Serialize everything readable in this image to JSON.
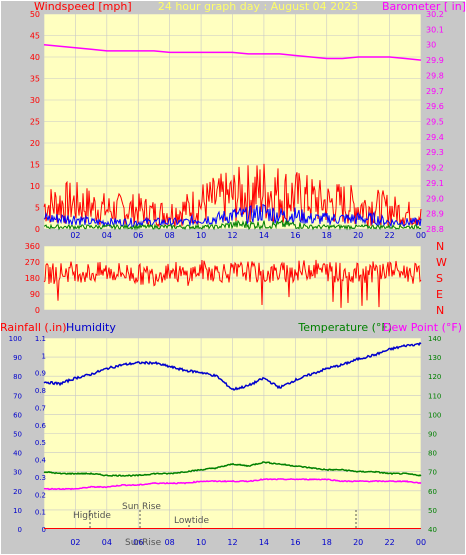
{
  "header": {
    "left_label": "Windspeed [mph]",
    "center_label": "24 hour graph day : August 04 2023",
    "right_label": "Barometer [ in]"
  },
  "colors": {
    "background": "#c8c8c8",
    "plot_bg": "#ffffc0",
    "grid": "#c8c8c8",
    "wind": "#ff0000",
    "gust_overlay": "#0000ff",
    "calm": "#008000",
    "barometer": "#ff00ff",
    "humidity": "#0000cc",
    "temperature": "#008000",
    "dew_point": "#ff00ff",
    "rain": "#ff0000",
    "title": "#ffff66",
    "marker": "#555555"
  },
  "wind_chart": {
    "y_left_ticks": [
      "0",
      "5",
      "10",
      "15",
      "20",
      "25",
      "30",
      "35",
      "40",
      "45",
      "50"
    ],
    "y_right_ticks": [
      "28.8",
      "28.9",
      "29.0",
      "29.1",
      "29.2",
      "29.3",
      "29.4",
      "29.5",
      "29.6",
      "29.7",
      "29.8",
      "29.9",
      "30",
      "30.1",
      "30.2"
    ]
  },
  "direction_chart": {
    "y_left_ticks": [
      "0",
      "90",
      "180",
      "270",
      "360"
    ],
    "compass": [
      "N",
      "W",
      "S",
      "E",
      "N"
    ]
  },
  "lower_chart": {
    "left_label_rain": "Rainfall (.in)",
    "left_label_humidity": "Humidity",
    "right_label_temp": "Temperature (°F)",
    "right_label_dew": "Dew Point (°F)",
    "y_humidity_ticks": [
      "0",
      "10",
      "20",
      "30",
      "40",
      "50",
      "60",
      "70",
      "80",
      "90",
      "100"
    ],
    "y_rain_ticks": [
      "0",
      "0.1",
      "0.2",
      "0.3",
      "0.4",
      "0.5",
      "0.6",
      "0.7",
      "0.8",
      "0.9",
      "1",
      "1.1"
    ],
    "y_temp_ticks": [
      "40",
      "50",
      "60",
      "70",
      "80",
      "90",
      "100",
      "110",
      "120",
      "130",
      "140"
    ],
    "markers": {
      "hightide": "Hightide",
      "sunrise": "Sun Rise",
      "lowtide": "Lowtide",
      "sunrise_axis": "SunRise"
    }
  },
  "x_ticks": [
    "02",
    "04",
    "06",
    "08",
    "10",
    "12",
    "14",
    "16",
    "18",
    "20",
    "22",
    "00"
  ],
  "chart_data": [
    {
      "type": "line",
      "ylabel": "Windspeed [mph]",
      "ylim": [
        0,
        50
      ],
      "x": [
        0,
        1,
        2,
        3,
        4,
        5,
        6,
        7,
        8,
        9,
        10,
        11,
        12,
        13,
        14,
        15,
        16,
        17,
        18,
        19,
        20,
        21,
        22,
        23,
        24
      ],
      "series": [
        {
          "name": "Windspeed [mph]",
          "values": [
            7,
            8,
            8,
            7,
            6,
            6,
            6,
            5,
            5,
            6,
            8,
            9,
            10,
            11,
            12,
            11,
            10,
            9,
            8,
            8,
            7,
            7,
            6,
            5,
            4
          ]
        }
      ],
      "gust_series": [
        3,
        3,
        3,
        2,
        2,
        2,
        2,
        2,
        2,
        2,
        3,
        3,
        4,
        4,
        5,
        4,
        4,
        3,
        3,
        3,
        3,
        3,
        2,
        2,
        2
      ],
      "calm_series": [
        1,
        1,
        1,
        1,
        1,
        1,
        1,
        1,
        1,
        1,
        1,
        1,
        2,
        2,
        2,
        2,
        2,
        1,
        1,
        1,
        1,
        1,
        1,
        1,
        1
      ],
      "barometer_ylim": [
        28.8,
        30.2
      ],
      "barometer": {
        "name": "Barometer [ in]",
        "values": [
          30.0,
          29.99,
          29.98,
          29.97,
          29.96,
          29.96,
          29.96,
          29.96,
          29.95,
          29.95,
          29.95,
          29.95,
          29.95,
          29.94,
          29.94,
          29.94,
          29.93,
          29.92,
          29.91,
          29.91,
          29.92,
          29.92,
          29.92,
          29.91,
          29.9
        ]
      }
    },
    {
      "type": "line",
      "ylim": [
        0,
        360
      ],
      "x": [
        0,
        1,
        2,
        3,
        4,
        5,
        6,
        7,
        8,
        9,
        10,
        11,
        12,
        13,
        14,
        15,
        16,
        17,
        18,
        19,
        20,
        21,
        22,
        23,
        24
      ],
      "series": [
        {
          "values": [
            200,
            210,
            220,
            205,
            215,
            210,
            200,
            195,
            230,
            190,
            225,
            215,
            210,
            220,
            200,
            210,
            215,
            230,
            220,
            210,
            205,
            215,
            225,
            210,
            200
          ]
        }
      ]
    },
    {
      "type": "line",
      "ylim": [
        0,
        100
      ],
      "x": [
        0,
        1,
        2,
        3,
        4,
        5,
        6,
        7,
        8,
        9,
        10,
        11,
        12,
        13,
        14,
        15,
        16,
        17,
        18,
        19,
        20,
        21,
        22,
        23,
        24
      ],
      "series": [
        {
          "name": "Humidity",
          "values": [
            77,
            76,
            79,
            81,
            84,
            86,
            87,
            87,
            85,
            83,
            82,
            80,
            73,
            75,
            79,
            74,
            78,
            81,
            84,
            86,
            89,
            91,
            94,
            96,
            97
          ]
        }
      ],
      "temp_ylim": [
        40,
        140
      ],
      "temperature": {
        "name": "Temperature (°F)",
        "values": [
          70,
          69,
          69,
          69,
          68,
          68,
          68,
          69,
          69,
          70,
          71,
          72,
          74,
          73,
          75,
          74,
          73,
          72,
          71,
          71,
          70,
          70,
          69,
          69,
          68
        ]
      },
      "dew_point": {
        "name": "Dew Point (°F)",
        "values": [
          61,
          61,
          61,
          62,
          62,
          63,
          63,
          64,
          64,
          64,
          65,
          65,
          65,
          65,
          66,
          66,
          66,
          66,
          66,
          65,
          65,
          65,
          65,
          65,
          64
        ]
      },
      "rain_ylim": [
        0,
        1.1
      ],
      "rainfall": {
        "name": "Rainfall (.in)",
        "values": [
          0,
          0,
          0,
          0,
          0,
          0,
          0,
          0,
          0,
          0,
          0,
          0,
          0,
          0,
          0,
          0,
          0,
          0,
          0,
          0,
          0,
          0,
          0,
          0,
          0
        ]
      }
    }
  ]
}
